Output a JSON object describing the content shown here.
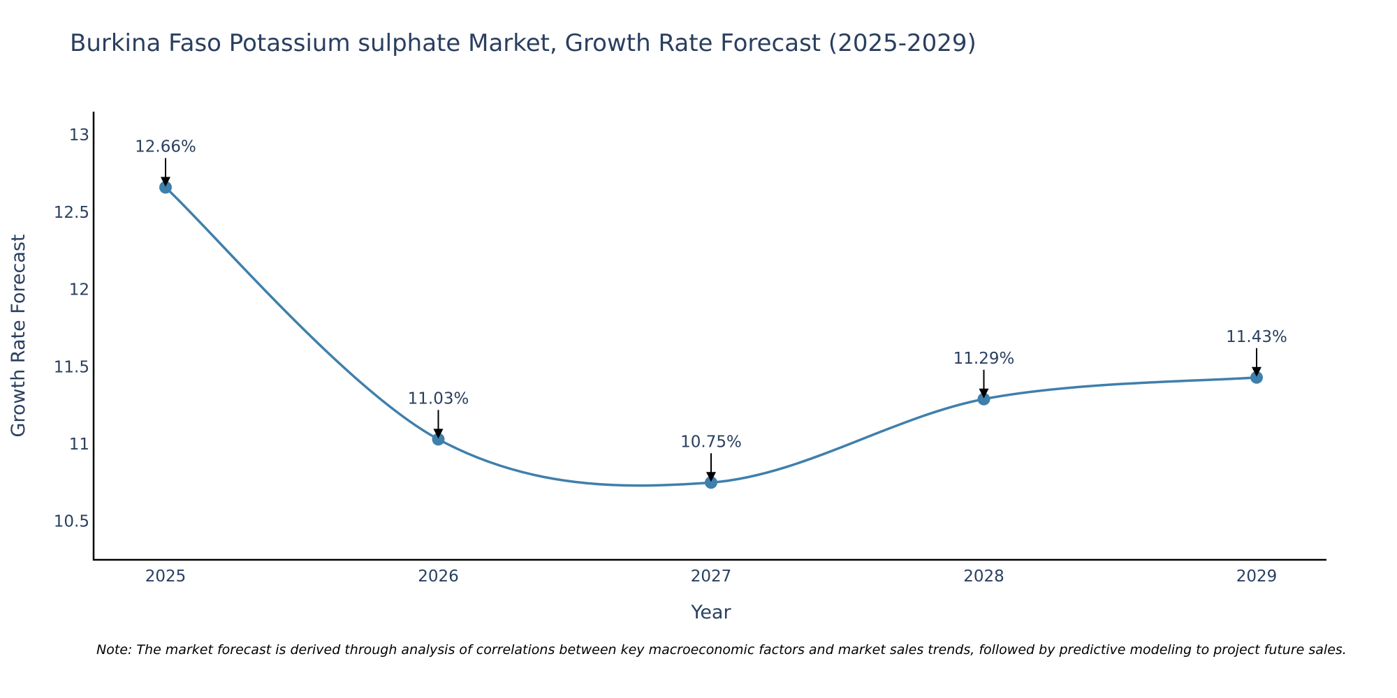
{
  "chart_data": {
    "type": "line",
    "title": "Burkina Faso Potassium sulphate Market, Growth Rate Forecast (2025-2029)",
    "xlabel": "Year",
    "ylabel": "Growth Rate Forecast",
    "categories": [
      "2025",
      "2026",
      "2027",
      "2028",
      "2029"
    ],
    "series": [
      {
        "name": "Growth Rate Forecast",
        "values": [
          12.66,
          11.03,
          10.75,
          11.29,
          11.43
        ],
        "labels": [
          "12.66%",
          "11.03%",
          "10.75%",
          "11.29%",
          "11.43%"
        ],
        "color": "#3f7fac"
      }
    ],
    "ylim": [
      10.25,
      13.15
    ],
    "yticks": [
      10.5,
      11,
      11.5,
      12,
      12.5,
      13
    ],
    "ytick_labels": [
      "10.5",
      "11",
      "11.5",
      "12",
      "12.5",
      "13"
    ],
    "grid": false,
    "line_shape": "spline"
  },
  "note": "Note: The market forecast is derived through analysis of correlations between key macroeconomic factors and market sales trends, followed by predictive modeling to project future sales."
}
